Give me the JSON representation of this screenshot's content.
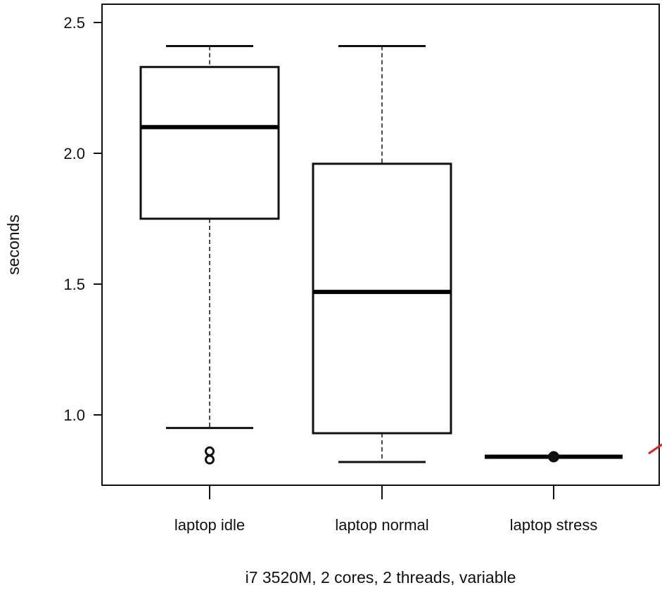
{
  "chart_data": {
    "type": "box",
    "title": "",
    "xlabel": "i7 3520M, 2 cores, 2 threads, variable",
    "ylabel": "seconds",
    "ylim": [
      0.75,
      2.6
    ],
    "yticks": [
      1.0,
      1.5,
      2.0,
      2.5
    ],
    "ytick_labels": [
      "1.0",
      "1.5",
      "2.0",
      "2.5"
    ],
    "grid": false,
    "categories": [
      "laptop idle",
      "laptop normal",
      "laptop stress"
    ],
    "boxes": [
      {
        "label": "laptop idle",
        "min": 0.95,
        "q1": 1.75,
        "median": 2.1,
        "q3": 2.33,
        "max": 2.41,
        "outliers": [
          0.84,
          0.85
        ]
      },
      {
        "label": "laptop normal",
        "min": 0.82,
        "q1": 0.93,
        "median": 1.47,
        "q3": 1.96,
        "max": 2.41,
        "outliers": []
      },
      {
        "label": "laptop stress",
        "min": 0.84,
        "q1": 0.84,
        "median": 0.84,
        "q3": 0.84,
        "max": 0.84,
        "outliers": [
          0.84
        ]
      }
    ],
    "colors": {
      "axis": "#111111",
      "annotation": "#e0201c"
    }
  }
}
